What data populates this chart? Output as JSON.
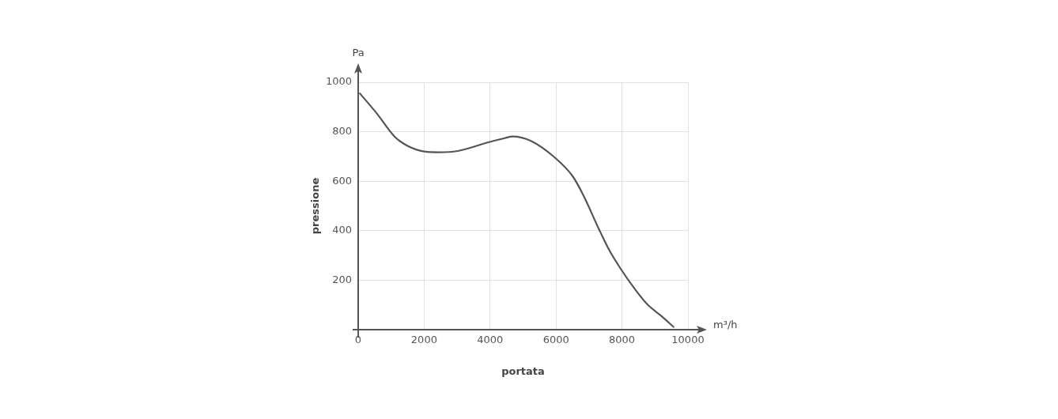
{
  "chart_data": {
    "type": "line",
    "xlabel": "portata",
    "ylabel": "pressione",
    "annotations": [
      "Pa",
      "m³/h"
    ],
    "xlim": [
      0,
      10000
    ],
    "xticks": [
      0,
      2000,
      4000,
      6000,
      8000,
      10000
    ],
    "ylim": [
      0,
      1000
    ],
    "yticks": [
      {
        "value": 0,
        "label": null
      },
      200,
      400,
      600,
      800,
      1000
    ],
    "grid": true,
    "marker": "none",
    "line_style": "solid",
    "series": [
      {
        "color": "#555555",
        "x": [
          50,
          557,
          1112,
          1508,
          2000,
          2460,
          3017,
          3968,
          4444,
          4682,
          5238,
          5976,
          6510,
          6825,
          7302,
          7619,
          7960,
          8413,
          8770,
          9206,
          9564
        ],
        "values": [
          955,
          875,
          779,
          742,
          720,
          717,
          722,
          758,
          774,
          781,
          763,
          694,
          619,
          544,
          406,
          320,
          246,
          160,
          102,
          54,
          11
        ]
      }
    ]
  }
}
